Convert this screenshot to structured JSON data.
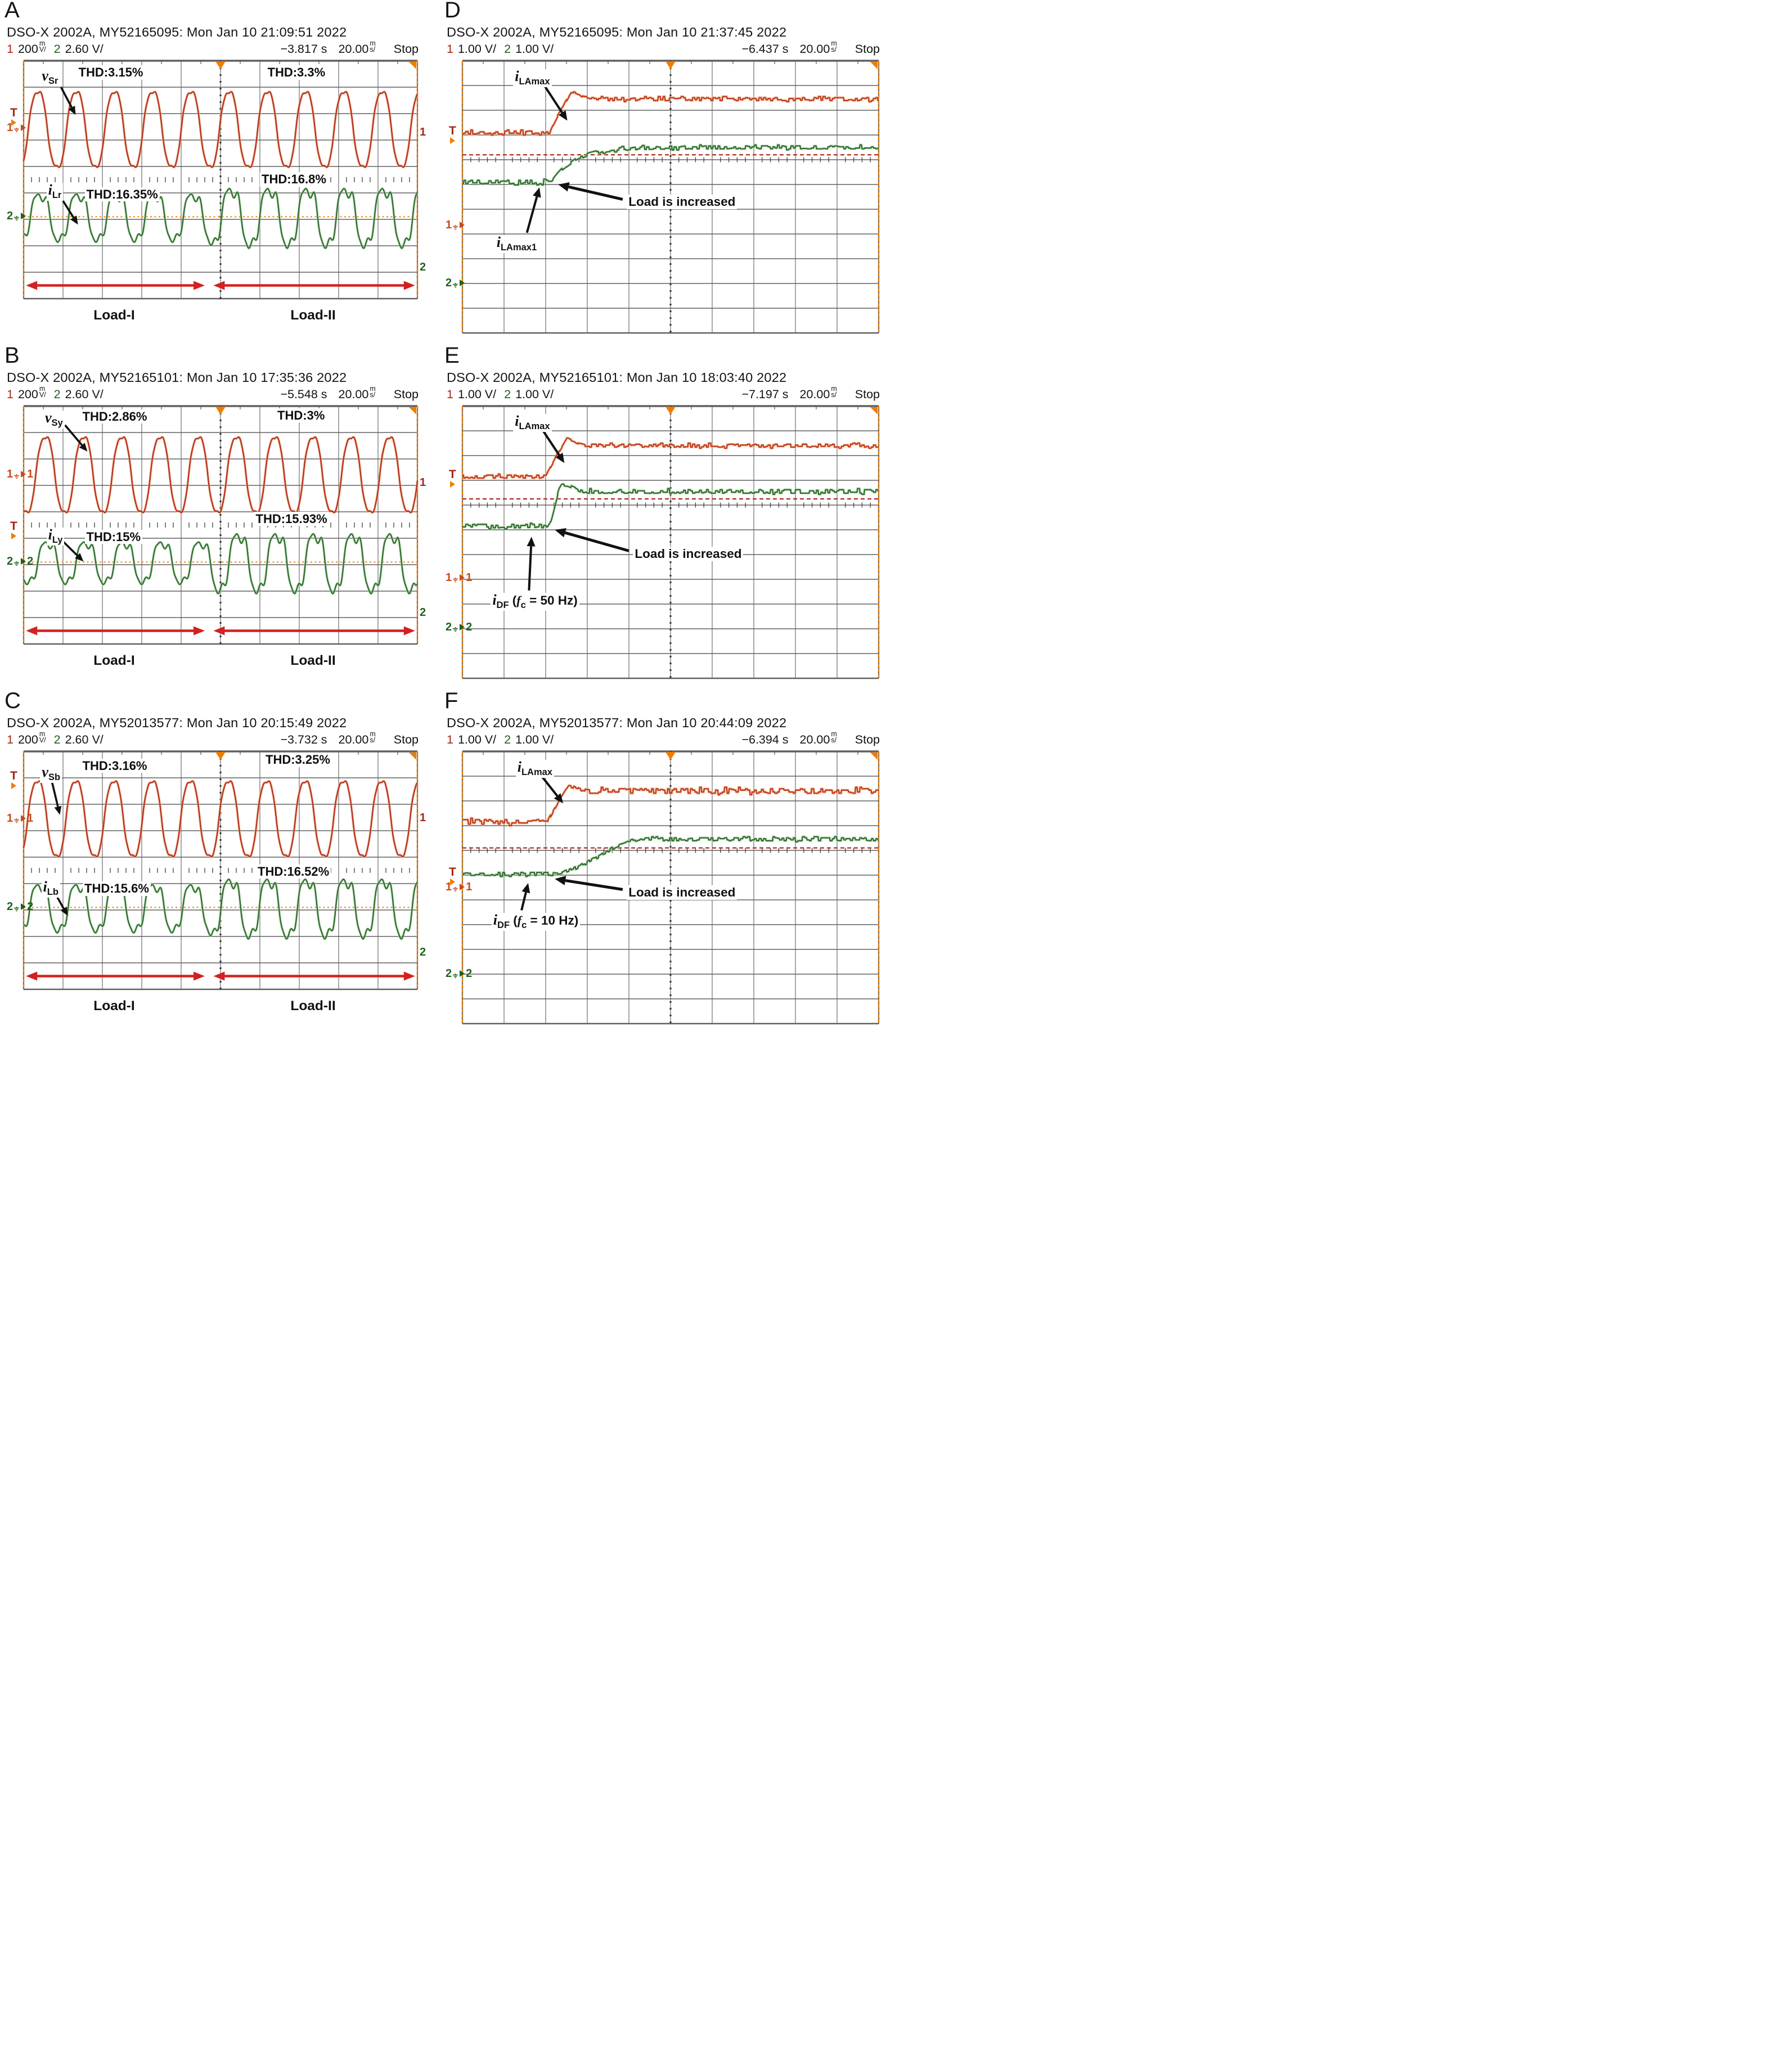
{
  "page_background": "#ffffff",
  "colors": {
    "ch1_text": "#a02615",
    "ch2_text": "#1d611d",
    "trace_red": "#b5301d",
    "trace_red_halo": "#f2b38a",
    "trace_green": "#2e6e2c",
    "trace_green_halo": "#b9d8b4",
    "orange_marker": "#ef7d00",
    "load_arrow_red": "#d42020",
    "dashed_reference": "#b4372c",
    "grid_line": "#6d6d6d",
    "annotation_black": "#111111"
  },
  "chart_data": {
    "type": "line",
    "x_axis": {
      "divisions": 10,
      "time_per_division": "20.00 ms/"
    },
    "panels": [
      {
        "letter": "A",
        "kind": "thd",
        "title": "DSO-X 2002A, MY52165095: Mon Jan 10 21:09:51 2022",
        "status": {
          "ch1_num": "1",
          "ch1_val": "200",
          "ch1_unit_top": "m",
          "ch1_unit_bot": "V/",
          "ch2_num": "2",
          "ch2_val": "2.60 V/",
          "time_offset": "−3.817 s",
          "time_val": "20.00",
          "time_unit_top": "m",
          "time_unit_bot": "s/",
          "mode": "Stop"
        },
        "grid": {
          "cols": 10,
          "rows": 9,
          "tick_row": 4.5
        },
        "voltage": {
          "label": "v",
          "sub": "Sr",
          "center_row": 2.6,
          "amp_rows": 1.6,
          "cycles": 10.3,
          "phase_deg": -45,
          "thd_load1": "THD:3.15%",
          "thd_load2": "THD:3.3%",
          "pos": {
            "label": [
              0.42,
              0.3
            ],
            "arrow": [
              0.95,
              1.0,
              1.32,
              2.05
            ],
            "thd1": [
              1.35,
              0.18
            ],
            "thd2": [
              6.15,
              0.18
            ]
          }
        },
        "current": {
          "label": "i",
          "sub": "Lr",
          "center_row": 5.9,
          "amp_rows_load1": 1.25,
          "amp_rows_load2": 1.55,
          "cycles": 10.3,
          "phase_deg": -65,
          "thd_load1": "THD:16.35%",
          "thd_load2": "THD:16.8%",
          "pos": {
            "label": [
              0.58,
              4.62
            ],
            "arrow": [
              1.0,
              5.3,
              1.38,
              6.2
            ],
            "thd1": [
              1.55,
              4.78
            ],
            "thd2": [
              6.0,
              4.22
            ]
          }
        },
        "loads": {
          "label1": "Load-I",
          "label2": "Load-II",
          "boundary_div": 4.75,
          "arrow_row": 8.5,
          "span1": [
            0.06,
            4.6
          ],
          "span2": [
            4.82,
            9.94
          ],
          "centers": [
            2.3,
            7.35
          ]
        },
        "markers": [
          {
            "kind": "T",
            "row": 2.05
          },
          {
            "kind": "ch",
            "ch": 1,
            "row": 2.55,
            "ground": true,
            "inner": false
          },
          {
            "kind": "ch",
            "ch": 2,
            "row": 5.9,
            "ground": true,
            "inner": false
          },
          {
            "kind": "right",
            "ch": 1,
            "row": 2.7
          },
          {
            "kind": "right",
            "ch": 2,
            "row": 7.8
          }
        ],
        "seed": 101
      },
      {
        "letter": "B",
        "kind": "thd",
        "title": "DSO-X 2002A, MY52165101: Mon Jan 10 17:35:36 2022",
        "status": {
          "ch1_num": "1",
          "ch1_val": "200",
          "ch1_unit_top": "m",
          "ch1_unit_bot": "V/",
          "ch2_num": "2",
          "ch2_val": "2.60 V/",
          "time_offset": "−5.548 s",
          "time_val": "20.00",
          "time_unit_top": "m",
          "time_unit_bot": "s/",
          "mode": "Stop"
        },
        "grid": {
          "cols": 10,
          "rows": 9,
          "tick_row": 4.5
        },
        "voltage": {
          "label": "v",
          "sub": "Sy",
          "center_row": 2.6,
          "amp_rows": 1.6,
          "cycles": 10.3,
          "phase_deg": -115,
          "thd_load1": "THD:2.86%",
          "thd_load2": "THD:3%",
          "pos": {
            "label": [
              0.5,
              0.18
            ],
            "arrow": [
              1.05,
              0.72,
              1.62,
              1.72
            ],
            "thd1": [
              1.45,
              0.12
            ],
            "thd2": [
              6.4,
              0.08
            ]
          }
        },
        "current": {
          "label": "i",
          "sub": "Ly",
          "center_row": 5.9,
          "amp_rows_load1": 1.1,
          "amp_rows_load2": 1.55,
          "cycles": 10.3,
          "phase_deg": -135,
          "thd_load1": "THD:15%",
          "thd_load2": "THD:15.93%",
          "pos": {
            "label": [
              0.58,
              4.6
            ],
            "arrow": [
              1.0,
              5.12,
              1.52,
              5.88
            ],
            "thd1": [
              1.55,
              4.68
            ],
            "thd2": [
              5.85,
              4.0
            ]
          }
        },
        "loads": {
          "label1": "Load-I",
          "label2": "Load-II",
          "boundary_div": 4.75,
          "arrow_row": 8.5,
          "span1": [
            0.06,
            4.6
          ],
          "span2": [
            4.82,
            9.94
          ],
          "centers": [
            2.3,
            7.35
          ]
        },
        "markers": [
          {
            "kind": "ch",
            "ch": 1,
            "row": 2.6,
            "ground": true,
            "inner": true
          },
          {
            "kind": "T",
            "row": 4.62
          },
          {
            "kind": "ch",
            "ch": 2,
            "row": 5.9,
            "ground": true,
            "inner": true
          },
          {
            "kind": "right",
            "ch": 1,
            "row": 2.9
          },
          {
            "kind": "right",
            "ch": 2,
            "row": 7.8
          }
        ],
        "seed": 102
      },
      {
        "letter": "C",
        "kind": "thd",
        "title": "DSO-X 2002A, MY52013577: Mon Jan 10 20:15:49 2022",
        "status": {
          "ch1_num": "1",
          "ch1_val": "200",
          "ch1_unit_top": "m",
          "ch1_unit_bot": "V/",
          "ch2_num": "2",
          "ch2_val": "2.60 V/",
          "time_offset": "−3.732 s",
          "time_val": "20.00",
          "time_unit_top": "m",
          "time_unit_bot": "s/",
          "mode": "Stop"
        },
        "grid": {
          "cols": 10,
          "rows": 9,
          "tick_row": 4.5
        },
        "voltage": {
          "label": "v",
          "sub": "Sb",
          "center_row": 2.55,
          "amp_rows": 1.6,
          "cycles": 10.3,
          "phase_deg": -40,
          "thd_load1": "THD:3.16%",
          "thd_load2": "THD:3.25%",
          "pos": {
            "label": [
              0.42,
              0.52
            ],
            "arrow": [
              0.72,
              1.15,
              0.92,
              2.4
            ],
            "thd1": [
              1.45,
              0.28
            ],
            "thd2": [
              6.1,
              0.05
            ]
          }
        },
        "current": {
          "label": "i",
          "sub": "Lb",
          "center_row": 5.9,
          "amp_rows_load1": 1.25,
          "amp_rows_load2": 1.55,
          "cycles": 10.3,
          "phase_deg": -60,
          "thd_load1": "THD:15.6%",
          "thd_load2": "THD:16.52%",
          "pos": {
            "label": [
              0.45,
              4.85
            ],
            "arrow": [
              0.82,
              5.42,
              1.12,
              6.22
            ],
            "thd1": [
              1.5,
              4.92
            ],
            "thd2": [
              5.9,
              4.28
            ]
          }
        },
        "loads": {
          "label1": "Load-I",
          "label2": "Load-II",
          "boundary_div": 4.75,
          "arrow_row": 8.5,
          "span1": [
            0.06,
            4.6
          ],
          "span2": [
            4.82,
            9.94
          ],
          "centers": [
            2.3,
            7.35
          ]
        },
        "markers": [
          {
            "kind": "T",
            "row": 1.0
          },
          {
            "kind": "ch",
            "ch": 1,
            "row": 2.55,
            "ground": true,
            "inner": true
          },
          {
            "kind": "ch",
            "ch": 2,
            "row": 5.9,
            "ground": true,
            "inner": true
          },
          {
            "kind": "right",
            "ch": 1,
            "row": 2.5
          },
          {
            "kind": "right",
            "ch": 2,
            "row": 7.6
          }
        ],
        "seed": 103
      },
      {
        "letter": "D",
        "kind": "step",
        "title": "DSO-X 2002A, MY52165095: Mon Jan 10 21:37:45 2022",
        "status": {
          "ch1_num": "1",
          "ch1_val": "1.00 V/",
          "ch2_num": "2",
          "ch2_val": "1.00 V/",
          "time_offset": "−6.437 s",
          "time_val": "20.00",
          "time_unit_top": "m",
          "time_unit_bot": "s/",
          "mode": "Stop"
        },
        "grid": {
          "cols": 10,
          "rows": 11,
          "tick_row": 4
        },
        "red": {
          "name": "iLAmax",
          "baseline_row": 2.9,
          "overshoot_row": 1.3,
          "settle_row": 1.55,
          "step_div": 2.1,
          "rise_div": 0.5,
          "noise_rows": 0.06
        },
        "green": {
          "name": "iLAmax1",
          "mode": "exp",
          "baseline_row": 4.9,
          "settle_row": 3.5,
          "step_div": 2.15,
          "tau_div": 0.55,
          "noise_rows": 0.07
        },
        "dashed_row": 3.8,
        "ann": {
          "main": {
            "segs": [
              [
                "i",
                "it"
              ],
              [
                "LAmax",
                "sub"
              ]
            ],
            "pos": [
              1.22,
              0.35
            ],
            "arrow": [
              1.95,
              0.95,
              2.52,
              2.42
            ]
          },
          "second": {
            "segs": [
              [
                "i",
                "it"
              ],
              [
                "LAmax1",
                "sub"
              ]
            ],
            "pos": [
              0.78,
              7.05
            ],
            "arrow": [
              1.55,
              6.95,
              1.85,
              5.12
            ]
          },
          "load": {
            "segs": [
              [
                "Load is increased",
                "t"
              ]
            ],
            "pos": [
              3.95,
              5.42
            ],
            "arrow": [
              3.85,
              5.6,
              2.3,
              5.0
            ]
          }
        },
        "markers": [
          {
            "kind": "T",
            "row": 2.9
          },
          {
            "kind": "ch",
            "ch": 1,
            "row": 6.65,
            "ground": true,
            "inner": false
          },
          {
            "kind": "ch",
            "ch": 2,
            "row": 9.0,
            "ground": true,
            "inner": false
          }
        ],
        "seed": 104
      },
      {
        "letter": "E",
        "kind": "step",
        "title": "DSO-X 2002A, MY52165101: Mon Jan 10 18:03:40 2022",
        "status": {
          "ch1_num": "1",
          "ch1_val": "1.00 V/",
          "ch2_num": "2",
          "ch2_val": "1.00 V/",
          "time_offset": "−7.197 s",
          "time_val": "20.00",
          "time_unit_top": "m",
          "time_unit_bot": "s/",
          "mode": "Stop"
        },
        "grid": {
          "cols": 10,
          "rows": 11,
          "tick_row": 4
        },
        "red": {
          "name": "iLAmax",
          "baseline_row": 2.85,
          "overshoot_row": 1.35,
          "settle_row": 1.6,
          "step_div": 2.0,
          "rise_div": 0.5,
          "noise_rows": 0.06
        },
        "green": {
          "name": "iDF",
          "mode": "fast",
          "baseline_row": 4.85,
          "settle_row": 3.45,
          "step_div": 2.05,
          "rise_div": 0.35,
          "overshoot_rows": 0.28,
          "noise_rows": 0.07
        },
        "dashed_row": 3.75,
        "ann": {
          "main": {
            "segs": [
              [
                "i",
                "it"
              ],
              [
                "LAmax",
                "sub"
              ]
            ],
            "pos": [
              1.22,
              0.32
            ],
            "arrow": [
              1.9,
              0.9,
              2.45,
              2.3
            ]
          },
          "second": {
            "segs": [
              [
                "i",
                "it"
              ],
              [
                "DF",
                "sub"
              ],
              [
                " (",
                "t"
              ],
              [
                "f",
                "itf"
              ],
              [
                "c",
                "sub"
              ],
              [
                " = 50 Hz)",
                "t"
              ]
            ],
            "pos": [
              0.68,
              7.55
            ],
            "arrow": [
              1.6,
              7.45,
              1.66,
              5.28
            ]
          },
          "load": {
            "segs": [
              [
                "Load is increased",
                "t"
              ]
            ],
            "pos": [
              4.1,
              5.68
            ],
            "arrow": [
              4.0,
              5.85,
              2.22,
              5.0
            ]
          }
        },
        "markers": [
          {
            "kind": "T",
            "row": 2.85
          },
          {
            "kind": "ch",
            "ch": 1,
            "row": 6.95,
            "ground": true,
            "inner": true
          },
          {
            "kind": "ch",
            "ch": 2,
            "row": 8.95,
            "ground": true,
            "inner": true
          }
        ],
        "seed": 105
      },
      {
        "letter": "F",
        "kind": "step",
        "title": "DSO-X 2002A, MY52013577: Mon Jan 10 20:44:09 2022",
        "status": {
          "ch1_num": "1",
          "ch1_val": "1.00 V/",
          "ch2_num": "2",
          "ch2_val": "1.00 V/",
          "time_offset": "−6.394 s",
          "time_val": "20.00",
          "time_unit_top": "m",
          "time_unit_bot": "s/",
          "mode": "Stop"
        },
        "grid": {
          "cols": 10,
          "rows": 11,
          "tick_row": 4
        },
        "red": {
          "name": "iLAmax",
          "baseline_row": 2.85,
          "overshoot_row": 1.4,
          "settle_row": 1.6,
          "step_div": 2.05,
          "rise_div": 0.5,
          "noise_rows": 0.09
        },
        "green": {
          "name": "iDF",
          "mode": "ramp",
          "baseline_row": 4.95,
          "settle_row": 3.55,
          "step_div": 2.1,
          "rise_div": 2.3,
          "noise_rows": 0.06
        },
        "dashed_row": 3.9,
        "ann": {
          "main": {
            "segs": [
              [
                "i",
                "it"
              ],
              [
                "LAmax",
                "sub"
              ]
            ],
            "pos": [
              1.28,
              0.35
            ],
            "arrow": [
              1.88,
              0.95,
              2.42,
              2.1
            ]
          },
          "second": {
            "segs": [
              [
                "i",
                "it"
              ],
              [
                "DF",
                "sub"
              ],
              [
                " (",
                "t"
              ],
              [
                "f",
                "itf"
              ],
              [
                "c",
                "sub"
              ],
              [
                " = 10 Hz)",
                "t"
              ]
            ],
            "pos": [
              0.7,
              6.52
            ],
            "arrow": [
              1.42,
              6.42,
              1.58,
              5.32
            ]
          },
          "load": {
            "segs": [
              [
                "Load is increased",
                "t"
              ]
            ],
            "pos": [
              3.95,
              5.42
            ],
            "arrow": [
              3.85,
              5.58,
              2.22,
              5.15
            ]
          }
        },
        "markers": [
          {
            "kind": "T",
            "row": 4.95
          },
          {
            "kind": "ch",
            "ch": 1,
            "row": 5.5,
            "ground": true,
            "inner": true
          },
          {
            "kind": "ch",
            "ch": 2,
            "row": 9.0,
            "ground": true,
            "inner": true
          }
        ],
        "seed": 106
      }
    ]
  }
}
